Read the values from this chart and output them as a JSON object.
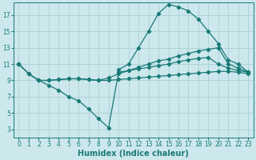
{
  "background_color": "#cce8ec",
  "grid_color": "#aacfd4",
  "line_color": "#1a7a78",
  "marker": "D",
  "markersize": 2.2,
  "linewidth": 0.9,
  "xlabel": "Humidex (Indice chaleur)",
  "xlabel_fontsize": 7,
  "tick_fontsize": 5.5,
  "xlim": [
    -0.5,
    23.5
  ],
  "ylim": [
    2,
    18.5
  ],
  "yticks": [
    3,
    5,
    7,
    9,
    11,
    13,
    15,
    17
  ],
  "xticks": [
    0,
    1,
    2,
    3,
    4,
    5,
    6,
    7,
    8,
    9,
    10,
    11,
    12,
    13,
    14,
    15,
    16,
    17,
    18,
    19,
    20,
    21,
    22,
    23
  ],
  "lines": [
    {
      "x": [
        0,
        1,
        2,
        3,
        4,
        5,
        6,
        7,
        8,
        9,
        10,
        11,
        12,
        13,
        14,
        15,
        16,
        17,
        18,
        19,
        20,
        21,
        22,
        23
      ],
      "y": [
        11.0,
        9.8,
        9.0,
        8.4,
        7.8,
        7.0,
        6.5,
        5.5,
        4.3,
        3.2,
        10.0,
        10.2,
        10.4,
        10.6,
        10.8,
        11.0,
        11.3,
        11.5,
        11.7,
        11.8,
        11.0,
        10.5,
        10.2,
        10.0
      ]
    },
    {
      "x": [
        0,
        1,
        2,
        3,
        4,
        5,
        6,
        7,
        8,
        9,
        10,
        11,
        12,
        13,
        14,
        15,
        16,
        17,
        18,
        19,
        20,
        21,
        22,
        23
      ],
      "y": [
        11.0,
        9.8,
        9.0,
        9.0,
        9.1,
        9.2,
        9.2,
        9.1,
        9.0,
        9.0,
        9.1,
        9.2,
        9.3,
        9.4,
        9.5,
        9.6,
        9.7,
        9.8,
        9.9,
        10.0,
        10.1,
        10.1,
        10.0,
        9.8
      ]
    },
    {
      "x": [
        10,
        11,
        12,
        13,
        14,
        15,
        16,
        17,
        18,
        19,
        20,
        21,
        22,
        23
      ],
      "y": [
        10.3,
        11.0,
        13.0,
        15.0,
        17.2,
        18.3,
        18.0,
        17.5,
        16.5,
        15.0,
        13.5,
        11.5,
        11.0,
        10.0
      ]
    },
    {
      "x": [
        0,
        1,
        2,
        3,
        4,
        5,
        6,
        7,
        8,
        9,
        10,
        11,
        12,
        13,
        14,
        15,
        16,
        17,
        18,
        19,
        20,
        21,
        22,
        23
      ],
      "y": [
        11.0,
        9.8,
        9.0,
        9.0,
        9.1,
        9.2,
        9.2,
        9.1,
        9.0,
        9.3,
        9.8,
        10.2,
        10.6,
        11.0,
        11.4,
        11.6,
        12.0,
        12.3,
        12.6,
        12.8,
        13.0,
        11.0,
        10.5,
        10.0
      ]
    }
  ]
}
